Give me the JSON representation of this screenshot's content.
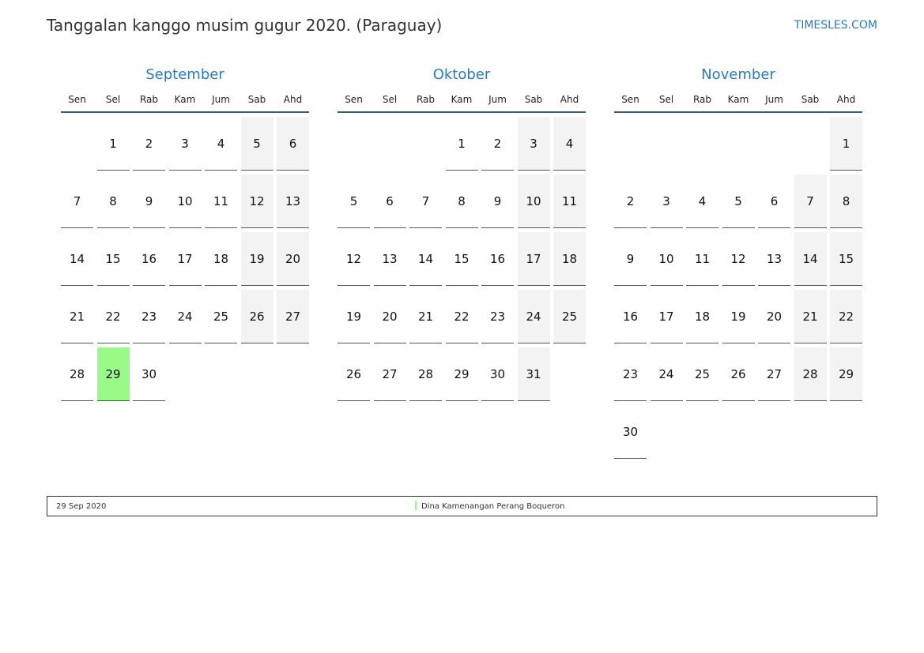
{
  "header": {
    "title": "Tanggalan kanggo musim gugur 2020. (Paraguay)",
    "brand": "TIMESLES.COM"
  },
  "weekdays": [
    "Sen",
    "Sel",
    "Rab",
    "Kam",
    "Jum",
    "Sab",
    "Ahd"
  ],
  "colors": {
    "accent": "#2a7ac0",
    "weekend": "#f3f3f3",
    "holiday": "#99fa87"
  },
  "months": [
    {
      "name": "September",
      "start_weekday": "Sel",
      "days": 30,
      "holidays": [
        29
      ]
    },
    {
      "name": "Oktober",
      "start_weekday": "Kam",
      "days": 31,
      "holidays": []
    },
    {
      "name": "November",
      "start_weekday": "Ahd",
      "days": 30,
      "holidays": []
    }
  ],
  "legend": [
    {
      "date": "29 Sep 2020",
      "name": "Dina Kamenangan Perang Boqueron"
    }
  ]
}
